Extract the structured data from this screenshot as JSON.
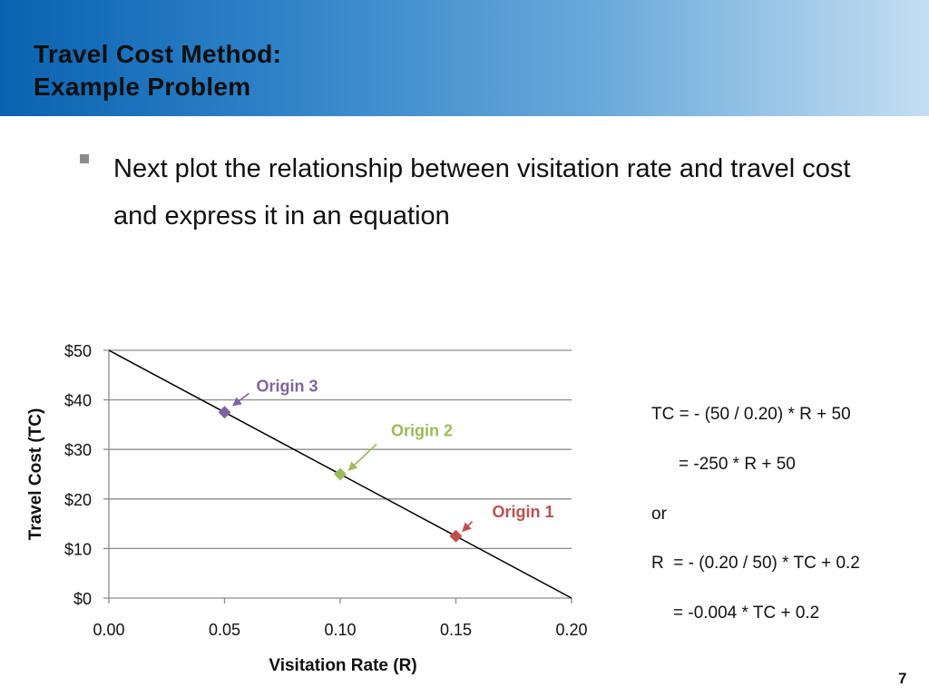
{
  "slide": {
    "title_line1": "Travel Cost Method:",
    "title_line2": "Example Problem",
    "bullet_text": "Next plot the relationship between visitation rate and travel cost and express it in an equation",
    "page_number": "7"
  },
  "equations": [
    "TC = - (50 / 0.20) * R + 50",
    "= -250 * R + 50",
    "or",
    "R  = - (0.20 / 50) * TC + 0.2",
    "= -0.004 * TC + 0.2"
  ],
  "colors": {
    "origin1": "#c0504d",
    "origin2": "#9bbb59",
    "origin3": "#8064a2",
    "gridline": "#8c8c8c",
    "fit_line": "#000000"
  },
  "chart_data": {
    "type": "scatter",
    "xlabel": "Visitation Rate (R)",
    "ylabel": "Travel Cost (TC)",
    "xlim": [
      0,
      0.2
    ],
    "ylim": [
      0,
      50
    ],
    "x_ticks": [
      "0.00",
      "0.05",
      "0.10",
      "0.15",
      "0.20"
    ],
    "y_ticks": [
      "$0",
      "$10",
      "$20",
      "$30",
      "$40",
      "$50"
    ],
    "grid": true,
    "series": [
      {
        "name": "Origin 1",
        "x": [
          0.15
        ],
        "y": [
          12.5
        ],
        "color": "#c0504d"
      },
      {
        "name": "Origin 2",
        "x": [
          0.1
        ],
        "y": [
          25
        ],
        "color": "#9bbb59"
      },
      {
        "name": "Origin 3",
        "x": [
          0.05
        ],
        "y": [
          37.5
        ],
        "color": "#8064a2"
      }
    ],
    "fit_line": {
      "x": [
        0,
        0.2
      ],
      "y": [
        50,
        0
      ]
    }
  }
}
